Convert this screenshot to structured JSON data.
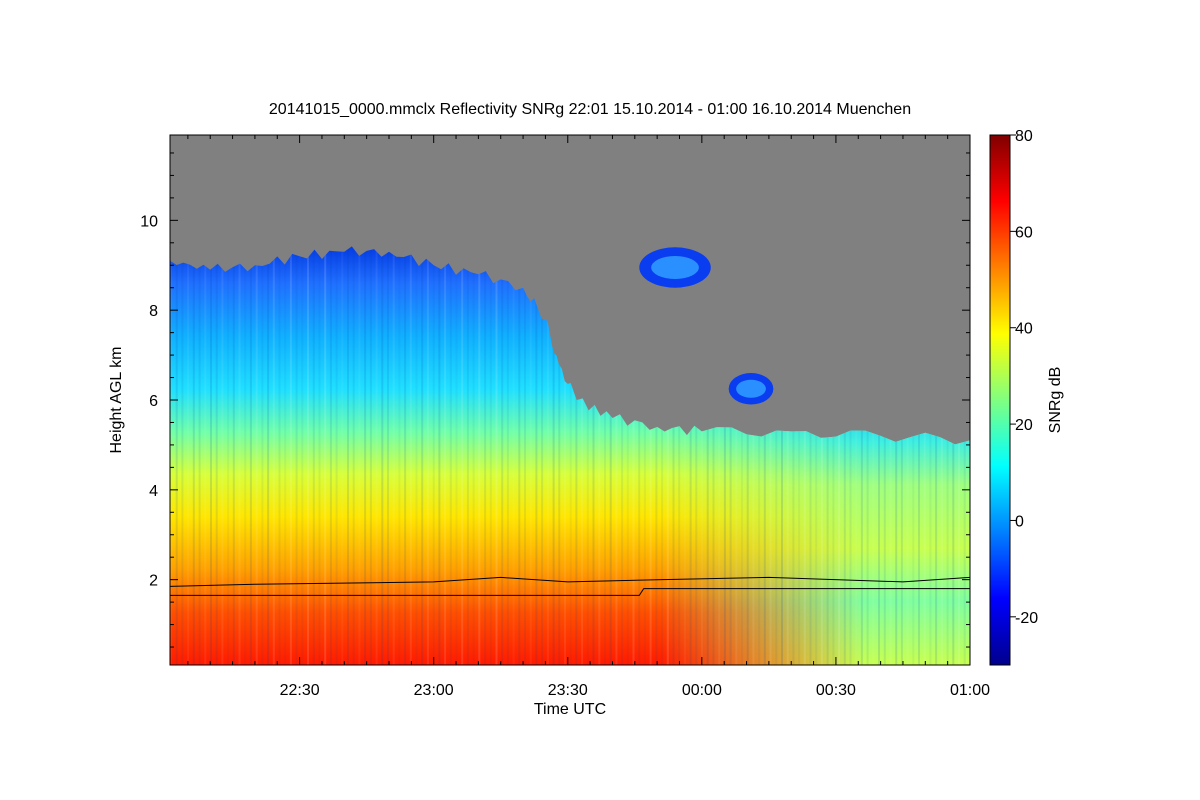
{
  "chart_data": {
    "type": "heatmap",
    "title": "20141015_0000.mmclx Reflectivity SNRg   22:01 15.10.2014 - 01:00 16.10.2014 Muenchen",
    "xlabel": "Time UTC",
    "ylabel": "Height AGL km",
    "x_unit": "minutes after 22:00 UTC",
    "xlim": [
      1,
      180
    ],
    "ylim": [
      0.1,
      11.9
    ],
    "x_ticks": [
      {
        "value": 30,
        "label": "22:30"
      },
      {
        "value": 60,
        "label": "23:00"
      },
      {
        "value": 90,
        "label": "23:30"
      },
      {
        "value": 120,
        "label": "00:00"
      },
      {
        "value": 150,
        "label": "00:30"
      },
      {
        "value": 180,
        "label": "01:00"
      }
    ],
    "y_ticks": [
      {
        "value": 2,
        "label": "2"
      },
      {
        "value": 4,
        "label": "4"
      },
      {
        "value": 6,
        "label": "6"
      },
      {
        "value": 8,
        "label": "8"
      },
      {
        "value": 10,
        "label": "10"
      }
    ],
    "colorbar": {
      "label": "SNRg dB",
      "range": [
        -30,
        80
      ],
      "ticks": [
        {
          "value": -20,
          "label": "-20"
        },
        {
          "value": 0,
          "label": "0"
        },
        {
          "value": 20,
          "label": "20"
        },
        {
          "value": 40,
          "label": "40"
        },
        {
          "value": 60,
          "label": "60"
        },
        {
          "value": 80,
          "label": "80"
        }
      ],
      "colors": [
        "#00008c",
        "#0000ff",
        "#0080ff",
        "#00ffff",
        "#80ff80",
        "#ffff00",
        "#ff8000",
        "#ff0000",
        "#800000"
      ]
    },
    "background_no_signal_color": "#808080",
    "cloud_top_profile": [
      {
        "t": 1,
        "h": 9.1
      },
      {
        "t": 10,
        "h": 8.9
      },
      {
        "t": 20,
        "h": 9.0
      },
      {
        "t": 30,
        "h": 9.2
      },
      {
        "t": 40,
        "h": 9.3
      },
      {
        "t": 50,
        "h": 9.3
      },
      {
        "t": 60,
        "h": 9.0
      },
      {
        "t": 70,
        "h": 8.8
      },
      {
        "t": 80,
        "h": 8.5
      },
      {
        "t": 85,
        "h": 7.8
      },
      {
        "t": 88,
        "h": 6.8
      },
      {
        "t": 92,
        "h": 6.0
      },
      {
        "t": 100,
        "h": 5.6
      },
      {
        "t": 110,
        "h": 5.4
      },
      {
        "t": 120,
        "h": 5.3
      },
      {
        "t": 140,
        "h": 5.3
      },
      {
        "t": 160,
        "h": 5.2
      },
      {
        "t": 180,
        "h": 5.1
      }
    ],
    "isolated_cloud_patches": [
      {
        "t_start": 106,
        "t_end": 122,
        "h_bottom": 8.5,
        "h_top": 9.4
      },
      {
        "t_start": 126,
        "t_end": 136,
        "h_bottom": 5.9,
        "h_top": 6.6
      }
    ],
    "series": [
      {
        "name": "upper boundary line",
        "points": [
          {
            "t": 1,
            "h": 1.85
          },
          {
            "t": 20,
            "h": 1.9
          },
          {
            "t": 60,
            "h": 1.95
          },
          {
            "t": 75,
            "h": 2.05
          },
          {
            "t": 90,
            "h": 1.95
          },
          {
            "t": 110,
            "h": 2.0
          },
          {
            "t": 135,
            "h": 2.05
          },
          {
            "t": 165,
            "h": 1.95
          },
          {
            "t": 180,
            "h": 2.05
          }
        ]
      },
      {
        "name": "lower boundary line",
        "points": [
          {
            "t": 1,
            "h": 1.65
          },
          {
            "t": 106,
            "h": 1.65
          },
          {
            "t": 107,
            "h": 1.8
          },
          {
            "t": 180,
            "h": 1.8
          }
        ]
      }
    ]
  }
}
